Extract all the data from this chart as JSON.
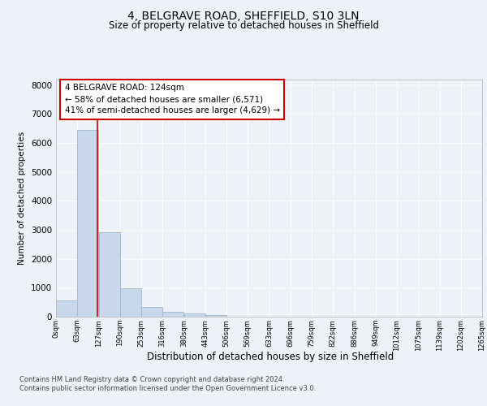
{
  "title": "4, BELGRAVE ROAD, SHEFFIELD, S10 3LN",
  "subtitle": "Size of property relative to detached houses in Sheffield",
  "xlabel": "Distribution of detached houses by size in Sheffield",
  "ylabel": "Number of detached properties",
  "bar_color": "#c8d8ea",
  "bar_edge_color": "#9ab8d0",
  "bins": [
    0,
    63,
    127,
    190,
    253,
    316,
    380,
    443,
    506,
    569,
    633,
    696,
    759,
    822,
    886,
    949,
    1012,
    1075,
    1139,
    1202,
    1265
  ],
  "values": [
    550,
    6450,
    2920,
    970,
    340,
    160,
    100,
    70,
    0,
    0,
    0,
    0,
    0,
    0,
    0,
    0,
    0,
    0,
    0,
    0
  ],
  "tick_labels": [
    "0sqm",
    "63sqm",
    "127sqm",
    "190sqm",
    "253sqm",
    "316sqm",
    "380sqm",
    "443sqm",
    "506sqm",
    "569sqm",
    "633sqm",
    "696sqm",
    "759sqm",
    "822sqm",
    "886sqm",
    "949sqm",
    "1012sqm",
    "1075sqm",
    "1139sqm",
    "1202sqm",
    "1265sqm"
  ],
  "property_size": 124,
  "property_line_color": "#cc0000",
  "annotation_line1": "4 BELGRAVE ROAD: 124sqm",
  "annotation_line2": "← 58% of detached houses are smaller (6,571)",
  "annotation_line3": "41% of semi-detached houses are larger (4,629) →",
  "annotation_box_color": "#ffffff",
  "annotation_box_edge": "#cc0000",
  "annotation_fontsize": 7.5,
  "footer_line1": "Contains HM Land Registry data © Crown copyright and database right 2024.",
  "footer_line2": "Contains public sector information licensed under the Open Government Licence v3.0.",
  "background_color": "#edf2f8",
  "plot_background": "#edf2f8",
  "grid_color": "#ffffff",
  "ylim": [
    0,
    8200
  ],
  "yticks": [
    0,
    1000,
    2000,
    3000,
    4000,
    5000,
    6000,
    7000,
    8000
  ],
  "title_fontsize": 10,
  "subtitle_fontsize": 8.5,
  "ylabel_fontsize": 7.5,
  "xlabel_fontsize": 8.5
}
